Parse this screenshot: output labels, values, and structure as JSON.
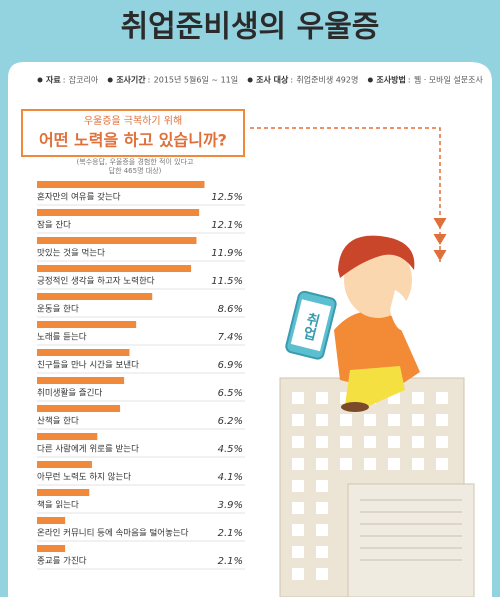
{
  "chart_data": {
    "type": "bar",
    "orientation": "horizontal",
    "title": "취업준비생의 우울증",
    "info": [
      {
        "label": "자료",
        "text": "잡코리아"
      },
      {
        "label": "조사기간",
        "text": "2015년 5월6일 ~ 11일"
      },
      {
        "label": "조사 대상",
        "text": "취업준비생 492명"
      },
      {
        "label": "조사방법",
        "text": "웹 · 모바일 설문조사"
      }
    ],
    "subtitle": "우울증을 극복하기 위해",
    "question": "어떤 노력을 하고 있습니까?",
    "annotation_lines": [
      "(복수응답, 우울증을 경험한 적이 있다고",
      "답한 465명 대상)"
    ],
    "illustration_text": "취업",
    "color": "#f0893a",
    "categories": [
      "혼자만의 여유를 갖는다",
      "잠을 잔다",
      "맛있는 것을 먹는다",
      "긍정적인 생각을 하고자 노력한다",
      "운동을 한다",
      "노래를 듣는다",
      "친구들을 만나 시간을 보낸다",
      "취미생활을 즐긴다",
      "산책을 한다",
      "다른 사람에게 위로를 받는다",
      "아무런 노력도 하지 않는다",
      "책을 읽는다",
      "온라인 커뮤니티 등에 속마음을 털어놓는다",
      "종교를 가진다"
    ],
    "values": [
      12.5,
      12.1,
      11.9,
      11.5,
      8.6,
      7.4,
      6.9,
      6.5,
      6.2,
      4.5,
      4.1,
      3.9,
      2.1,
      2.1
    ],
    "value_labels": [
      "12.5%",
      "12.1%",
      "11.9%",
      "11.5%",
      "8.6%",
      "7.4%",
      "6.9%",
      "6.5%",
      "6.2%",
      "4.5%",
      "4.1%",
      "3.9%",
      "2.1%",
      "2.1%"
    ]
  }
}
